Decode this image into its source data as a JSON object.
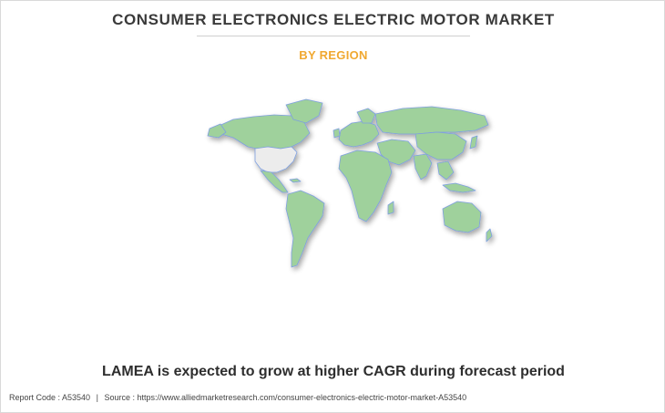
{
  "header": {
    "title": "CONSUMER ELECTRONICS ELECTRIC MOTOR MARKET",
    "subtitle": "BY REGION"
  },
  "map": {
    "land_color": "#9fd19c",
    "highlight_color": "#ececec",
    "border_color": "#7e9fe0",
    "highlighted_region": "United States"
  },
  "caption": "LAMEA is expected to grow at higher CAGR during forecast period",
  "footer": {
    "report_code": "Report Code : A53540",
    "separator": "|",
    "source": "Source : https://www.alliedmarketresearch.com/consumer-electronics-electric-motor-market-A53540"
  },
  "colors": {
    "title": "#3a3a3a",
    "subtitle": "#f0a830"
  }
}
